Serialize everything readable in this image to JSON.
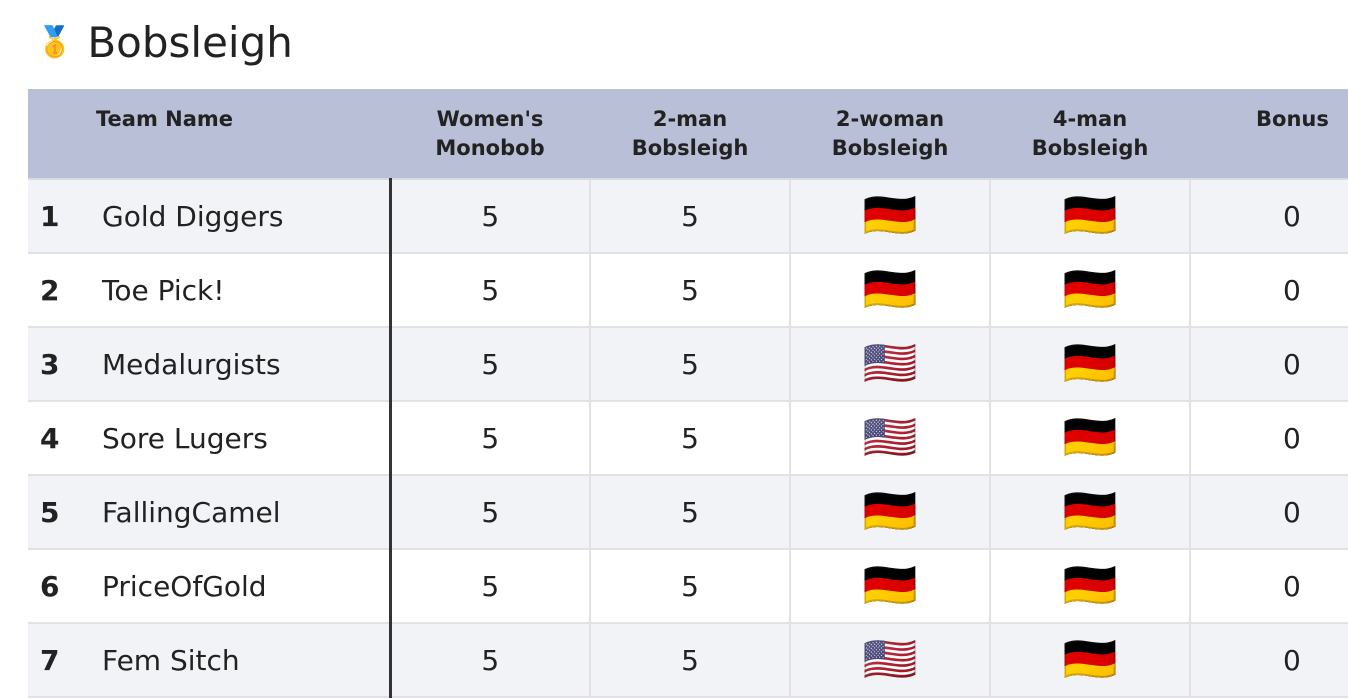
{
  "title": "Bobsleigh",
  "title_icon": "medal-icon",
  "columns": [
    "Team Name",
    "Women's Monobob",
    "2-man Bobsleigh",
    "2-woman Bobsleigh",
    "4-man Bobsleigh",
    "Bonus"
  ],
  "rows": [
    {
      "rank": "1",
      "name": "Gold Diggers",
      "monobob": "5",
      "two_man": "5",
      "two_woman": "🇩🇪",
      "four_man": "🇩🇪",
      "bonus": "0"
    },
    {
      "rank": "2",
      "name": "Toe Pick!",
      "monobob": "5",
      "two_man": "5",
      "two_woman": "🇩🇪",
      "four_man": "🇩🇪",
      "bonus": "0"
    },
    {
      "rank": "3",
      "name": "Medalurgists",
      "monobob": "5",
      "two_man": "5",
      "two_woman": "🇺🇸",
      "four_man": "🇩🇪",
      "bonus": "0"
    },
    {
      "rank": "4",
      "name": "Sore Lugers",
      "monobob": "5",
      "two_man": "5",
      "two_woman": "🇺🇸",
      "four_man": "🇩🇪",
      "bonus": "0"
    },
    {
      "rank": "5",
      "name": "FallingCamel",
      "monobob": "5",
      "two_man": "5",
      "two_woman": "🇩🇪",
      "four_man": "🇩🇪",
      "bonus": "0"
    },
    {
      "rank": "6",
      "name": "PriceOfGold",
      "monobob": "5",
      "two_man": "5",
      "two_woman": "🇩🇪",
      "four_man": "🇩🇪",
      "bonus": "0"
    },
    {
      "rank": "7",
      "name": "Fem Sitch",
      "monobob": "5",
      "two_man": "5",
      "two_woman": "🇺🇸",
      "four_man": "🇩🇪",
      "bonus": "0"
    }
  ]
}
